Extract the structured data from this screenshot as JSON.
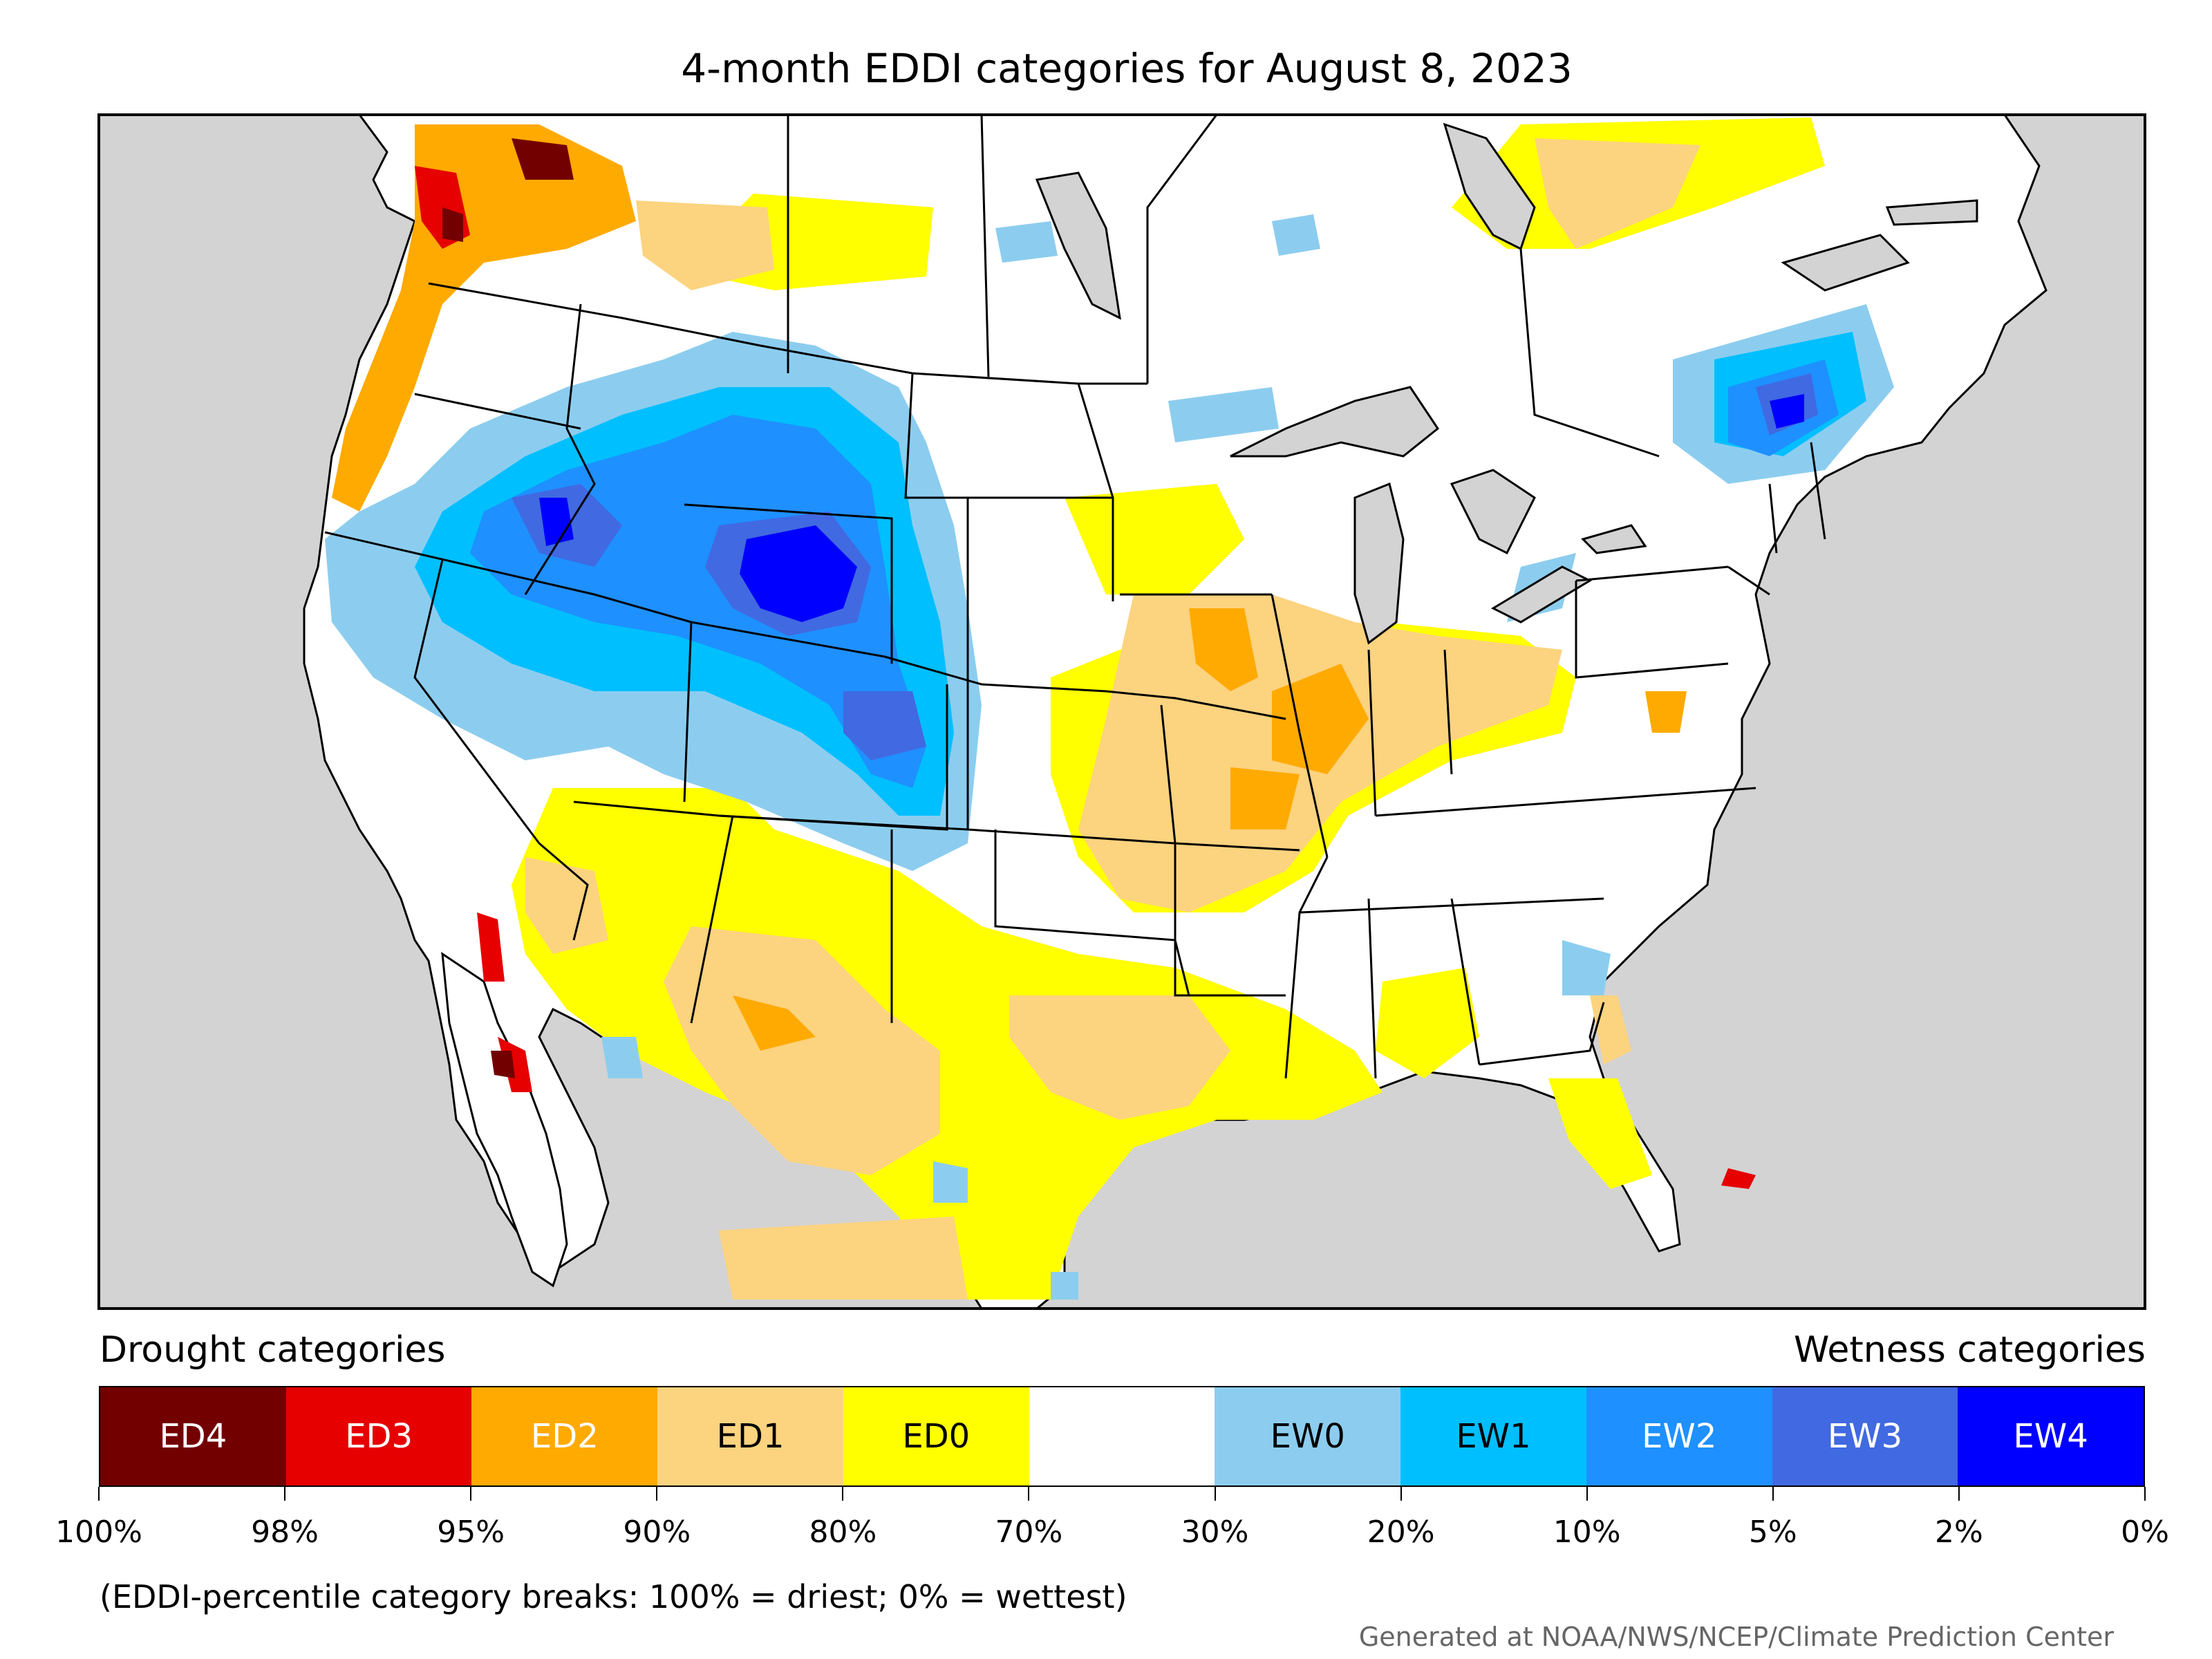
{
  "title": "4-month EDDI categories for August 8, 2023",
  "legend": {
    "drought_heading": "Drought categories",
    "wetness_heading": "Wetness categories",
    "categories": [
      {
        "label": "ED4",
        "color": "#730000",
        "text_color": "#ffffff"
      },
      {
        "label": "ED3",
        "color": "#e60000",
        "text_color": "#ffffff"
      },
      {
        "label": "ED2",
        "color": "#ffaa00",
        "text_color": "#ffffff"
      },
      {
        "label": "ED1",
        "color": "#fcd37f",
        "text_color": "#000000"
      },
      {
        "label": "ED0",
        "color": "#ffff00",
        "text_color": "#000000"
      },
      {
        "label": "",
        "color": "#ffffff",
        "text_color": "#000000"
      },
      {
        "label": "EW0",
        "color": "#8ccdef",
        "text_color": "#000000"
      },
      {
        "label": "EW1",
        "color": "#00bfff",
        "text_color": "#000000"
      },
      {
        "label": "EW2",
        "color": "#1e90ff",
        "text_color": "#ffffff"
      },
      {
        "label": "EW3",
        "color": "#4169e1",
        "text_color": "#ffffff"
      },
      {
        "label": "EW4",
        "color": "#0000ff",
        "text_color": "#ffffff"
      }
    ],
    "tick_labels": [
      "100%",
      "98%",
      "95%",
      "90%",
      "80%",
      "70%",
      "30%",
      "20%",
      "10%",
      "5%",
      "2%",
      "0%"
    ]
  },
  "footnote": "(EDDI-percentile category breaks: 100% = driest; 0% = wettest)",
  "credit": "Generated at NOAA/NWS/NCEP/Climate Prediction Center",
  "map": {
    "land_color": "#ffffff",
    "water_color": "#d3d3d3"
  }
}
